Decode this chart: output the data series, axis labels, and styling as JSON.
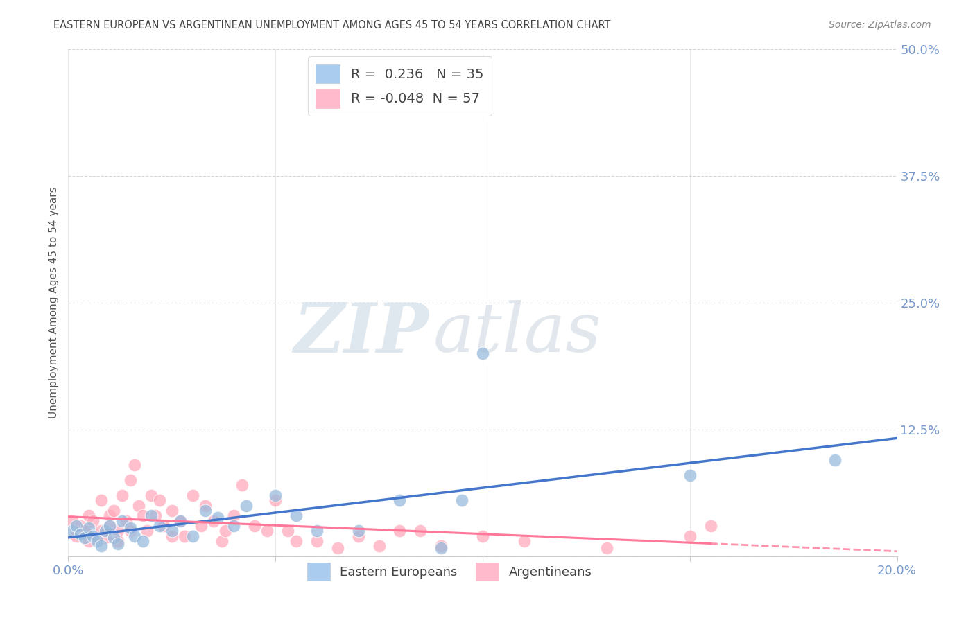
{
  "title": "EASTERN EUROPEAN VS ARGENTINEAN UNEMPLOYMENT AMONG AGES 45 TO 54 YEARS CORRELATION CHART",
  "source": "Source: ZipAtlas.com",
  "ylabel": "Unemployment Among Ages 45 to 54 years",
  "xlim": [
    0.0,
    0.2
  ],
  "ylim": [
    0.0,
    0.5
  ],
  "xticks": [
    0.0,
    0.05,
    0.1,
    0.15,
    0.2
  ],
  "xtick_labels": [
    "0.0%",
    "",
    "",
    "",
    "20.0%"
  ],
  "yticks": [
    0.0,
    0.125,
    0.25,
    0.375,
    0.5
  ],
  "ytick_labels": [
    "",
    "12.5%",
    "25.0%",
    "37.5%",
    "50.0%"
  ],
  "watermark_zip": "ZIP",
  "watermark_atlas": "atlas",
  "legend_blue_label": "Eastern Europeans",
  "legend_pink_label": "Argentineans",
  "blue_R": 0.236,
  "blue_N": 35,
  "pink_R": -0.048,
  "pink_N": 57,
  "blue_scatter_color": "#99BBDD",
  "pink_scatter_color": "#FFAABB",
  "blue_line_color": "#4477CC",
  "pink_line_color": "#FF7799",
  "blue_legend_color": "#AACCEE",
  "pink_legend_color": "#FFBBCC",
  "background_color": "#FFFFFF",
  "grid_color": "#CCCCCC",
  "title_color": "#444444",
  "source_color": "#888888",
  "ylabel_color": "#555555",
  "tick_color": "#7799CC",
  "blue_points_x": [
    0.001,
    0.002,
    0.003,
    0.004,
    0.005,
    0.006,
    0.007,
    0.008,
    0.009,
    0.01,
    0.011,
    0.012,
    0.013,
    0.015,
    0.016,
    0.018,
    0.02,
    0.022,
    0.025,
    0.027,
    0.03,
    0.033,
    0.036,
    0.04,
    0.043,
    0.05,
    0.055,
    0.06,
    0.07,
    0.08,
    0.09,
    0.1,
    0.095,
    0.15,
    0.185
  ],
  "blue_points_y": [
    0.025,
    0.03,
    0.022,
    0.018,
    0.028,
    0.02,
    0.015,
    0.01,
    0.025,
    0.03,
    0.018,
    0.012,
    0.035,
    0.028,
    0.02,
    0.015,
    0.04,
    0.03,
    0.025,
    0.035,
    0.02,
    0.045,
    0.038,
    0.03,
    0.05,
    0.06,
    0.04,
    0.025,
    0.025,
    0.055,
    0.008,
    0.2,
    0.055,
    0.08,
    0.095
  ],
  "pink_points_x": [
    0.001,
    0.002,
    0.003,
    0.004,
    0.005,
    0.005,
    0.006,
    0.007,
    0.008,
    0.008,
    0.009,
    0.01,
    0.01,
    0.011,
    0.012,
    0.012,
    0.013,
    0.014,
    0.015,
    0.015,
    0.016,
    0.017,
    0.018,
    0.019,
    0.02,
    0.021,
    0.022,
    0.023,
    0.025,
    0.025,
    0.027,
    0.028,
    0.03,
    0.032,
    0.033,
    0.035,
    0.037,
    0.038,
    0.04,
    0.042,
    0.045,
    0.048,
    0.05,
    0.053,
    0.055,
    0.06,
    0.065,
    0.07,
    0.075,
    0.08,
    0.085,
    0.09,
    0.1,
    0.11,
    0.13,
    0.15,
    0.155
  ],
  "pink_points_y": [
    0.035,
    0.02,
    0.03,
    0.025,
    0.04,
    0.015,
    0.035,
    0.02,
    0.055,
    0.025,
    0.018,
    0.03,
    0.04,
    0.045,
    0.025,
    0.015,
    0.06,
    0.035,
    0.075,
    0.025,
    0.09,
    0.05,
    0.04,
    0.025,
    0.06,
    0.04,
    0.055,
    0.03,
    0.045,
    0.02,
    0.035,
    0.02,
    0.06,
    0.03,
    0.05,
    0.035,
    0.015,
    0.025,
    0.04,
    0.07,
    0.03,
    0.025,
    0.055,
    0.025,
    0.015,
    0.015,
    0.008,
    0.02,
    0.01,
    0.025,
    0.025,
    0.01,
    0.02,
    0.015,
    0.008,
    0.02,
    0.03
  ],
  "figsize": [
    14.06,
    8.92
  ],
  "dpi": 100
}
